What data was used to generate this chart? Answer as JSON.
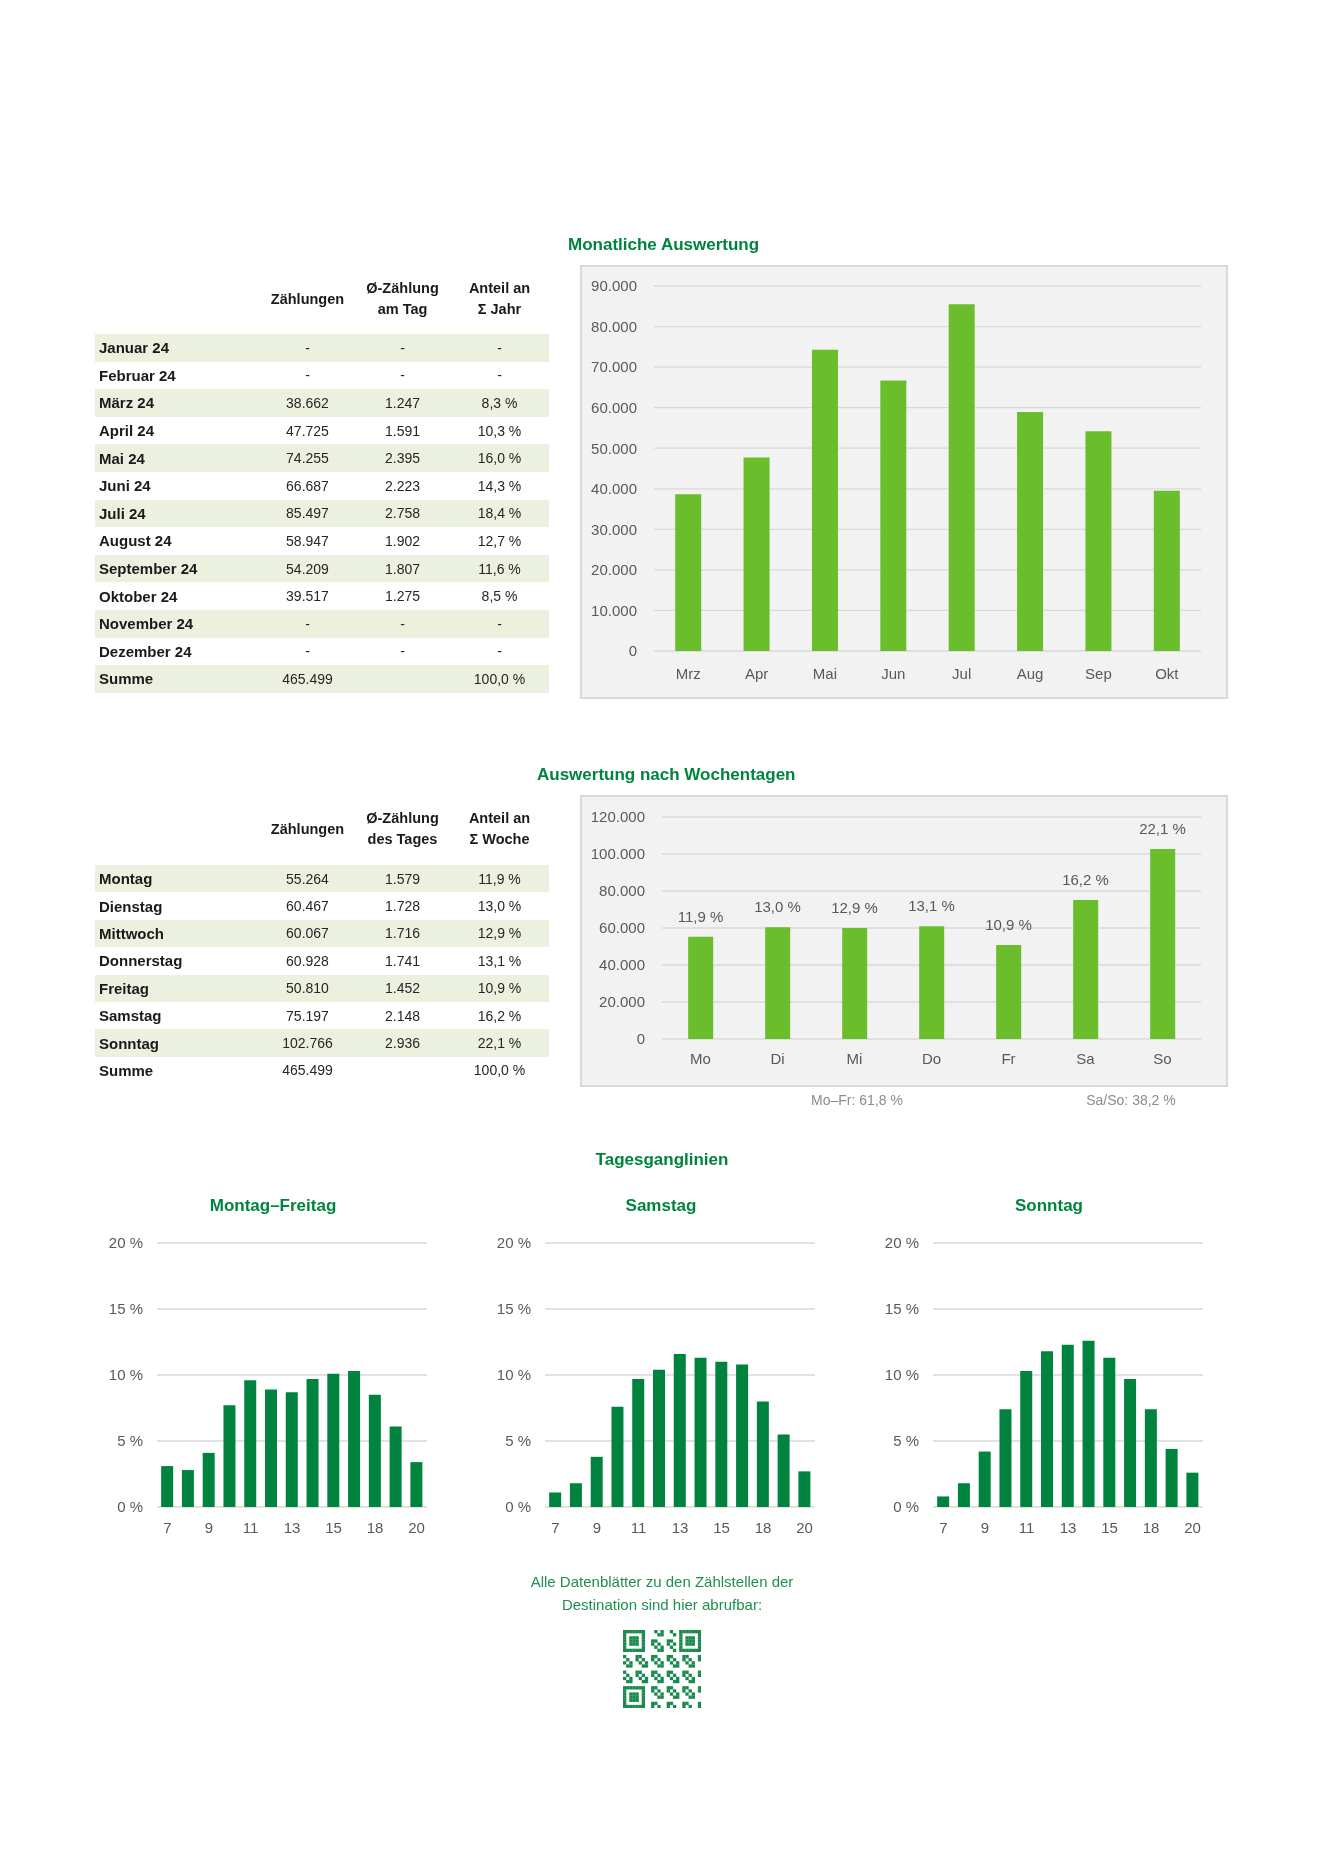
{
  "chart_data": [
    {
      "type": "other",
      "categories": [
        "Januar 24",
        "Februar 24",
        "März 24",
        "April 24",
        "Mai 24",
        "Juni 24",
        "Juli 24",
        "August 24",
        "September 24",
        "Oktober 24",
        "November 24",
        "Dezember 24",
        "Summe"
      ],
      "series": [
        {
          "name": "Zählungen",
          "values": [
            null,
            null,
            38662,
            47725,
            74255,
            66687,
            85497,
            58947,
            54209,
            39517,
            null,
            null,
            465499
          ],
          "value_labels": [
            "-",
            "-",
            "38.662",
            "47.725",
            "74.255",
            "66.687",
            "85.497",
            "58.947",
            "54.209",
            "39.517",
            "-",
            "-",
            "465.499"
          ]
        },
        {
          "name": "Ø-Zählung\nam Tag",
          "values": [
            null,
            null,
            1247,
            1591,
            2395,
            2223,
            2758,
            1902,
            1807,
            1275,
            null,
            null,
            null
          ],
          "value_labels": [
            "-",
            "-",
            "1.247",
            "1.591",
            "2.395",
            "2.223",
            "2.758",
            "1.902",
            "1.807",
            "1.275",
            "-",
            "-",
            null
          ]
        },
        {
          "name": "Anteil an\nΣ Jahr",
          "values": [
            null,
            null,
            8.3,
            10.3,
            16.0,
            14.3,
            18.4,
            12.7,
            11.6,
            8.5,
            null,
            null,
            100.0
          ],
          "value_labels": [
            "-",
            "-",
            "8,3 %",
            "10,3 %",
            "16,0 %",
            "14,3 %",
            "18,4 %",
            "12,7 %",
            "11,6 %",
            "8,5 %",
            "-",
            "-",
            "100,0 %"
          ]
        }
      ]
    },
    {
      "type": "bar",
      "title": "Monatliche Auswertung",
      "categories": [
        "Mrz",
        "Apr",
        "Mai",
        "Jun",
        "Jul",
        "Aug",
        "Sep",
        "Okt"
      ],
      "values": [
        38662,
        47725,
        74255,
        66687,
        85497,
        58947,
        54209,
        39517
      ],
      "color": "#6abd2b",
      "ylim": [
        0,
        90000
      ],
      "yticks": [
        0,
        {
          "value": 10000,
          "label": "10.000"
        },
        {
          "value": 20000,
          "label": "20.000"
        },
        {
          "value": 30000,
          "label": "30.000"
        },
        {
          "value": 40000,
          "label": "40.000"
        },
        {
          "value": 50000,
          "label": "50.000"
        },
        {
          "value": 60000,
          "label": "60.000"
        },
        {
          "value": 70000,
          "label": "70.000"
        },
        {
          "value": 80000,
          "label": "80.000"
        },
        {
          "value": 90000,
          "label": "90.000"
        }
      ],
      "grid": "y"
    },
    {
      "type": "other",
      "categories": [
        "Montag",
        "Dienstag",
        "Mittwoch",
        "Donnerstag",
        "Freitag",
        "Samstag",
        "Sonntag",
        "Summe"
      ],
      "series": [
        {
          "name": "Zählungen",
          "values": [
            55264,
            60467,
            60067,
            60928,
            50810,
            75197,
            102766,
            465499
          ],
          "value_labels": [
            "55.264",
            "60.467",
            "60.067",
            "60.928",
            "50.810",
            "75.197",
            "102.766",
            "465.499"
          ]
        },
        {
          "name": "Ø-Zählung\ndes Tages",
          "values": [
            1579,
            1728,
            1716,
            1741,
            1452,
            2148,
            2936,
            null
          ],
          "value_labels": [
            "1.579",
            "1.728",
            "1.716",
            "1.741",
            "1.452",
            "2.148",
            "2.936",
            null
          ]
        },
        {
          "name": "Anteil an\nΣ Woche",
          "values": [
            11.9,
            13.0,
            12.9,
            13.1,
            10.9,
            16.2,
            22.1,
            100.0
          ],
          "value_labels": [
            "11,9 %",
            "13,0 %",
            "12,9 %",
            "13,1 %",
            "10,9 %",
            "16,2 %",
            "22,1 %",
            "100,0 %"
          ]
        }
      ]
    },
    {
      "type": "bar",
      "title": "Auswertung nach Wochentagen",
      "categories": [
        "Mo",
        "Di",
        "Mi",
        "Do",
        "Fr",
        "Sa",
        "So"
      ],
      "values": [
        55264,
        60467,
        60067,
        60928,
        50810,
        75197,
        102766
      ],
      "color": "#6abd2b",
      "ylim": [
        0,
        120000
      ],
      "yticks": [
        0,
        {
          "value": 20000,
          "label": "20.000"
        },
        {
          "value": 40000,
          "label": "40.000"
        },
        {
          "value": 60000,
          "label": "60.000"
        },
        {
          "value": 80000,
          "label": "80.000"
        },
        {
          "value": 100000,
          "label": "100.000"
        },
        {
          "value": 120000,
          "label": "120.000"
        }
      ],
      "grid": "y",
      "annotations": [
        {
          "text": "11,9 %",
          "x": "Mo",
          "y": 55264
        },
        {
          "text": "13,0 %",
          "x": "Di",
          "y": 60467
        },
        {
          "text": "12,9 %",
          "x": "Mi",
          "y": 60067
        },
        {
          "text": "13,1 %",
          "x": "Do",
          "y": 60928
        },
        {
          "text": "10,9 %",
          "x": "Fr",
          "y": 50810
        },
        {
          "text": "16,2 %",
          "x": "Sa",
          "y": 75197
        },
        {
          "text": "22,1 %",
          "x": "So",
          "y": 102766
        },
        "Mo–Fr: 61,8 %",
        "Sa/So: 38,2 %"
      ]
    },
    {
      "type": "other",
      "title": "Tagesganglinien"
    },
    {
      "type": "bar",
      "title": "Montag–Freitag",
      "categories": [
        "7",
        null,
        "9",
        null,
        "11",
        null,
        "13",
        null,
        "15",
        null,
        "18",
        null,
        "20"
      ],
      "values": [
        3.1,
        2.8,
        4.1,
        7.7,
        9.6,
        8.9,
        8.7,
        9.7,
        10.1,
        10.3,
        8.5,
        6.1,
        3.4
      ],
      "color": "#00833f",
      "ylim": [
        0,
        20
      ],
      "yticks": [
        {
          "value": 0,
          "label": "0 %"
        },
        {
          "value": 5,
          "label": "5 %"
        },
        {
          "value": 10,
          "label": "10 %"
        },
        {
          "value": 15,
          "label": "15 %"
        },
        {
          "value": 20,
          "label": "20 %"
        }
      ],
      "grid": "y"
    },
    {
      "type": "bar",
      "title": "Samstag",
      "categories": [
        "7",
        null,
        "9",
        null,
        "11",
        null,
        "13",
        null,
        "15",
        null,
        "18",
        null,
        "20"
      ],
      "values": [
        1.1,
        1.8,
        3.8,
        7.6,
        9.7,
        10.4,
        11.6,
        11.3,
        11.0,
        10.8,
        8.0,
        5.5,
        2.7
      ],
      "color": "#00833f",
      "ylim": [
        0,
        20
      ],
      "yticks": [
        {
          "value": 0,
          "label": "0 %"
        },
        {
          "value": 5,
          "label": "5 %"
        },
        {
          "value": 10,
          "label": "10 %"
        },
        {
          "value": 15,
          "label": "15 %"
        },
        {
          "value": 20,
          "label": "20 %"
        }
      ],
      "grid": "y"
    },
    {
      "type": "bar",
      "title": "Sonntag",
      "categories": [
        "7",
        null,
        "9",
        null,
        "11",
        null,
        "13",
        null,
        "15",
        null,
        "18",
        null,
        "20"
      ],
      "values": [
        0.8,
        1.8,
        4.2,
        7.4,
        10.3,
        11.8,
        12.3,
        12.6,
        11.3,
        9.7,
        7.4,
        4.4,
        2.6
      ],
      "color": "#00833f",
      "ylim": [
        0,
        20
      ],
      "yticks": [
        {
          "value": 0,
          "label": "0 %"
        },
        {
          "value": 5,
          "label": "5 %"
        },
        {
          "value": 10,
          "label": "10 %"
        },
        {
          "value": 15,
          "label": "15 %"
        },
        {
          "value": 20,
          "label": "20 %"
        }
      ],
      "grid": "y"
    },
    {
      "type": "other",
      "annotations": [
        "Alle Datenblätter zu den Zählstellen der Destination sind hier abrufbar:"
      ]
    }
  ]
}
